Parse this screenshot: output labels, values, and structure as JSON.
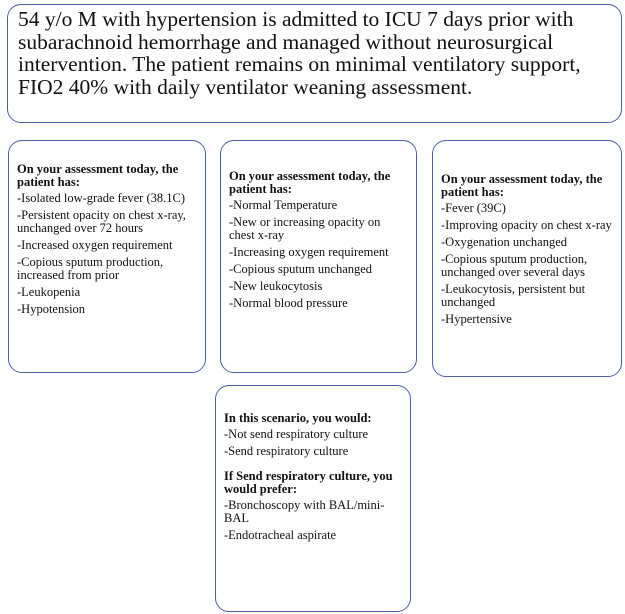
{
  "header": {
    "text": "54 y/o M with hypertension is admitted to ICU 7 days prior with subarachnoid hemorrhage and managed without neurosurgical intervention. The patient remains on minimal ventilatory support, FIO2 40% with daily ventilator weaning assessment."
  },
  "cards": [
    {
      "title": "On your assessment today, the patient has:",
      "items": [
        "-Isolated low-grade fever (38.1C)",
        "-Persistent opacity on chest x-ray, unchanged over 72 hours",
        "-Increased oxygen requirement",
        "-Copious sputum production, increased from prior",
        "-Leukopenia",
        "-Hypotension"
      ]
    },
    {
      "title": "On your assessment today, the patient has:",
      "items": [
        "-Normal Temperature",
        "-New or increasing opacity on chest x-ray",
        "-Increasing oxygen requirement",
        "-Copious sputum unchanged",
        "-New leukocytosis",
        "-Normal blood pressure"
      ]
    },
    {
      "title": "On your assessment today, the patient has:",
      "items": [
        "-Fever (39C)",
        "-Improving opacity on chest x-ray",
        "-Oxygenation unchanged",
        "-Copious sputum production, unchanged over several days",
        "-Leukocytosis, persistent but unchanged",
        "-Hypertensive"
      ]
    }
  ],
  "decision": {
    "sections": [
      {
        "title": "In this scenario, you would:",
        "options": [
          "-Not send respiratory culture",
          "-Send respiratory culture"
        ]
      },
      {
        "title": "If Send respiratory culture, you would prefer:",
        "options": [
          "-Bronchoscopy with BAL/mini-BAL",
          "-Endotracheal aspirate"
        ]
      }
    ]
  }
}
